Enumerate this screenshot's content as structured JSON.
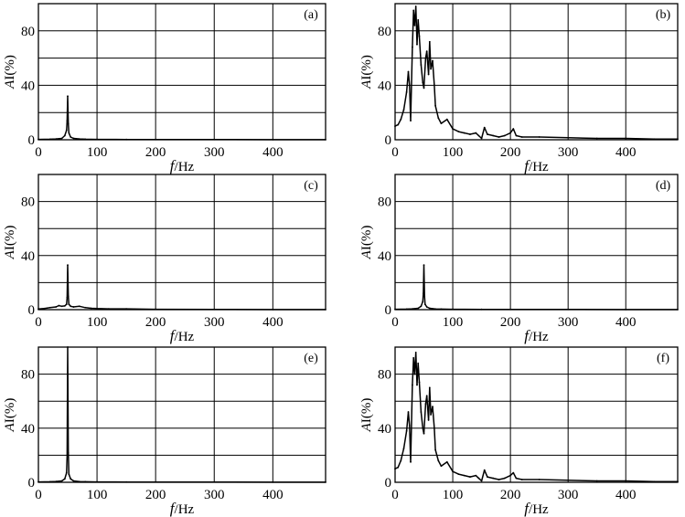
{
  "figure": {
    "title": ""
  },
  "chart_data": [
    {
      "panel_label": "(a)",
      "type": "line",
      "xlabel_italic": "f",
      "xlabel_unit": "/Hz",
      "ylabel_italic": "A",
      "ylabel_unit": "I(%)",
      "xlim": [
        0,
        490
      ],
      "ylim": [
        0,
        100
      ],
      "xticks": [
        0,
        100,
        200,
        300,
        400
      ],
      "yticks": [
        0,
        40,
        80
      ],
      "grid": true,
      "series": [
        {
          "x": [
            0,
            20,
            30,
            40,
            45,
            48,
            49,
            50,
            51,
            52,
            55,
            60,
            70,
            80,
            100,
            150,
            200,
            300,
            400,
            490
          ],
          "y": [
            0.3,
            0.4,
            0.6,
            1.0,
            3.0,
            7.0,
            14.0,
            32.0,
            12.0,
            5.0,
            2.0,
            1.0,
            0.6,
            0.4,
            0.3,
            0.2,
            0.2,
            0.2,
            0.1,
            0.1
          ]
        }
      ]
    },
    {
      "panel_label": "(b)",
      "type": "line",
      "xlabel_italic": "f",
      "xlabel_unit": "/Hz",
      "ylabel_italic": "A",
      "ylabel_unit": "I(%)",
      "xlim": [
        0,
        490
      ],
      "ylim": [
        0,
        100
      ],
      "xticks": [
        0,
        100,
        200,
        300,
        400
      ],
      "yticks": [
        0,
        40,
        80
      ],
      "grid": true,
      "series": [
        {
          "x": [
            0,
            5,
            10,
            15,
            20,
            23,
            25,
            27,
            30,
            32,
            34,
            36,
            38,
            40,
            42,
            45,
            48,
            50,
            53,
            55,
            58,
            60,
            62,
            65,
            68,
            70,
            75,
            80,
            90,
            100,
            110,
            120,
            130,
            140,
            145,
            150,
            155,
            160,
            170,
            180,
            190,
            200,
            205,
            210,
            220,
            250,
            300,
            350,
            400,
            450,
            490
          ],
          "y": [
            10,
            11,
            15,
            22,
            35,
            50,
            40,
            14,
            68,
            95,
            84,
            98,
            70,
            88,
            76,
            55,
            42,
            38,
            60,
            65,
            48,
            72,
            52,
            58,
            40,
            25,
            16,
            12,
            15,
            8,
            6,
            5,
            4,
            5,
            3,
            1,
            9,
            4,
            3,
            2,
            3,
            5,
            8,
            3,
            2,
            2,
            1.5,
            1,
            1,
            0.5,
            0.5
          ]
        }
      ]
    },
    {
      "panel_label": "(c)",
      "type": "line",
      "xlabel_italic": "f",
      "xlabel_unit": "/Hz",
      "ylabel_italic": "A",
      "ylabel_unit": "I(%)",
      "xlim": [
        0,
        490
      ],
      "ylim": [
        0,
        100
      ],
      "xticks": [
        0,
        100,
        200,
        300,
        400
      ],
      "yticks": [
        0,
        40,
        80
      ],
      "grid": true,
      "series": [
        {
          "x": [
            0,
            10,
            20,
            30,
            35,
            40,
            45,
            48,
            49,
            50,
            51,
            52,
            55,
            60,
            70,
            80,
            90,
            100,
            120,
            150,
            200,
            300,
            400,
            490
          ],
          "y": [
            0.5,
            0.8,
            1.5,
            2.0,
            3.0,
            2.5,
            2.8,
            4.0,
            9.0,
            33.0,
            10.0,
            4.0,
            2.5,
            2.0,
            2.5,
            1.5,
            1.0,
            0.8,
            0.6,
            0.6,
            0.3,
            0.2,
            0.1,
            0.1
          ]
        }
      ]
    },
    {
      "panel_label": "(d)",
      "type": "line",
      "xlabel_italic": "f",
      "xlabel_unit": "/Hz",
      "ylabel_italic": "A",
      "ylabel_unit": "I(%)",
      "xlim": [
        0,
        490
      ],
      "ylim": [
        0,
        100
      ],
      "xticks": [
        0,
        100,
        200,
        300,
        400
      ],
      "yticks": [
        0,
        40,
        80
      ],
      "grid": true,
      "series": [
        {
          "x": [
            0,
            20,
            30,
            40,
            45,
            48,
            49,
            50,
            51,
            52,
            55,
            60,
            70,
            80,
            100,
            150,
            200,
            300,
            400,
            490
          ],
          "y": [
            0.3,
            0.4,
            0.6,
            1.0,
            2.5,
            6.0,
            12.0,
            33.0,
            10.0,
            4.0,
            2.0,
            1.0,
            0.5,
            0.4,
            0.3,
            0.2,
            0.2,
            0.2,
            0.1,
            0.1
          ]
        }
      ]
    },
    {
      "panel_label": "(e)",
      "type": "line",
      "xlabel_italic": "f",
      "xlabel_unit": "/Hz",
      "ylabel_italic": "A",
      "ylabel_unit": "I(%)",
      "xlim": [
        0,
        490
      ],
      "ylim": [
        0,
        100
      ],
      "xticks": [
        0,
        100,
        200,
        300,
        400
      ],
      "yticks": [
        0,
        40,
        80
      ],
      "grid": true,
      "series": [
        {
          "x": [
            0,
            20,
            30,
            40,
            45,
            48,
            49,
            50,
            51,
            52,
            55,
            60,
            70,
            80,
            100,
            150,
            200,
            300,
            400,
            490
          ],
          "y": [
            0.3,
            0.4,
            0.6,
            1.0,
            2.5,
            7.0,
            20.0,
            100.0,
            22.0,
            6.0,
            2.5,
            1.0,
            0.5,
            0.4,
            0.3,
            0.2,
            0.2,
            0.2,
            0.1,
            0.1
          ]
        }
      ]
    },
    {
      "panel_label": "(f)",
      "type": "line",
      "xlabel_italic": "f",
      "xlabel_unit": "/Hz",
      "ylabel_italic": "A",
      "ylabel_unit": "I(%)",
      "xlim": [
        0,
        490
      ],
      "ylim": [
        0,
        100
      ],
      "xticks": [
        0,
        100,
        200,
        300,
        400
      ],
      "yticks": [
        0,
        40,
        80
      ],
      "grid": true,
      "series": [
        {
          "x": [
            0,
            5,
            10,
            15,
            20,
            23,
            25,
            27,
            30,
            32,
            34,
            36,
            38,
            40,
            42,
            45,
            48,
            50,
            53,
            55,
            58,
            60,
            62,
            65,
            68,
            70,
            75,
            80,
            90,
            100,
            110,
            120,
            130,
            140,
            145,
            150,
            155,
            160,
            170,
            180,
            190,
            200,
            205,
            210,
            220,
            250,
            300,
            350,
            400,
            450,
            490
          ],
          "y": [
            10,
            11,
            16,
            25,
            38,
            52,
            42,
            15,
            72,
            92,
            80,
            96,
            72,
            88,
            74,
            52,
            40,
            36,
            58,
            64,
            46,
            70,
            50,
            56,
            40,
            24,
            16,
            12,
            15,
            8,
            6,
            5,
            4,
            5,
            3,
            1,
            9,
            4,
            3,
            2,
            3,
            5,
            7,
            3,
            2,
            2,
            1.5,
            1,
            1,
            0.5,
            0.5
          ]
        }
      ]
    }
  ]
}
